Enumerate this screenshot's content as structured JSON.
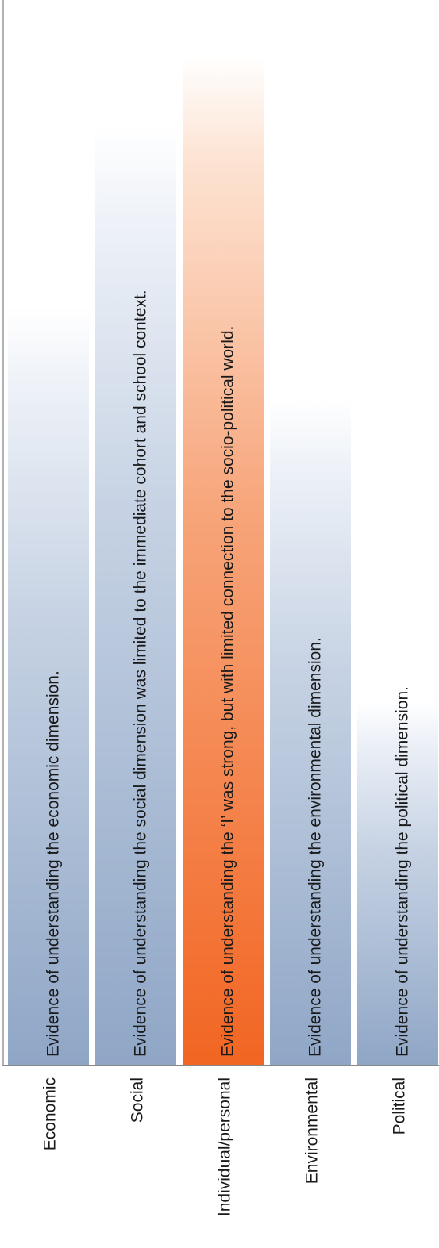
{
  "chart_data": {
    "type": "bar",
    "orientation": "horizontal-bars-rotated",
    "title": "",
    "xlabel": "",
    "ylabel": "",
    "categories": [
      "Economic",
      "Social",
      "Individual/personal",
      "Environmental",
      "Political"
    ],
    "values": [
      0.75,
      0.93,
      1.0,
      0.66,
      0.36
    ],
    "bar_texts": [
      "Evidence of understanding the economic dimension.",
      "Evidence of understanding the social dimension was limited to the immediate cohort and school context.",
      "Evidence of understanding the ‘I’ was strong, but with limited connection to the socio-political world.",
      "Evidence of understanding the environmental dimension.",
      "Evidence of understanding the political dimension."
    ],
    "highlight": "Individual/personal",
    "colors": {
      "bar_base": "#8fa6c6",
      "highlight_base": "#f26522",
      "axis": "#888888",
      "text": "#1a1a1a"
    },
    "grid": false,
    "legend": "none"
  }
}
